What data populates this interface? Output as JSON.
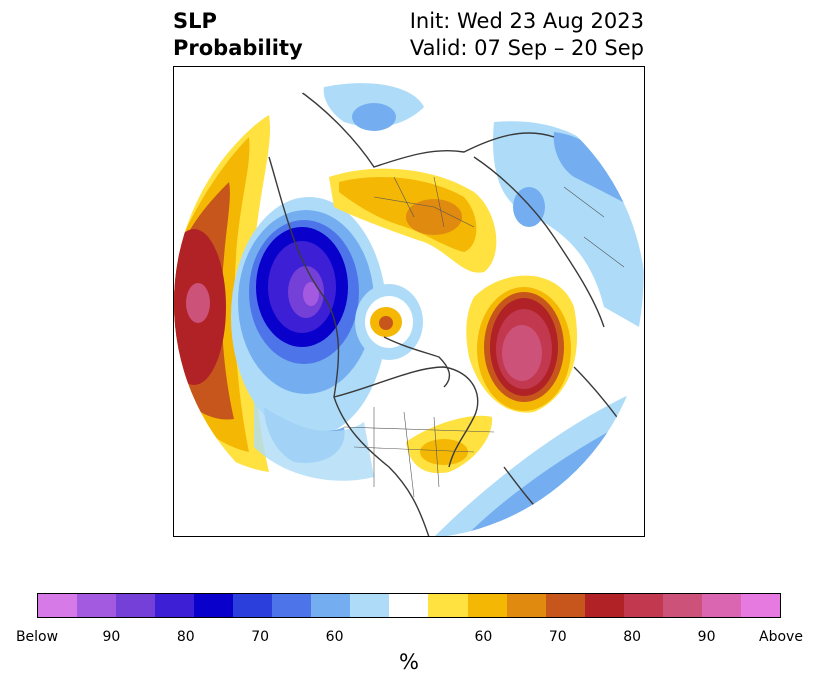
{
  "header": {
    "variable": "SLP",
    "metric": "Probability",
    "init": "Init: Wed 23 Aug 2023",
    "valid": "Valid: 07 Sep – 20 Sep"
  },
  "map": {
    "projection": "north-polar-stereographic",
    "anomalies": [
      {
        "region": "North Pacific (west of North America)",
        "sign": "above",
        "peak_percent": 90
      },
      {
        "region": "Gulf of Alaska / western Canada",
        "sign": "below",
        "peak_percent": 90
      },
      {
        "region": "Arctic Ocean near North Pole",
        "sign": "above",
        "peak_percent": 70
      },
      {
        "region": "North Atlantic / Greenland Sea",
        "sign": "above",
        "peak_percent": 90
      },
      {
        "region": "Siberia / northern Asia",
        "sign": "above",
        "peak_percent": 70
      },
      {
        "region": "Eastern United States",
        "sign": "above",
        "peak_percent": 65
      },
      {
        "region": "Subtropical North Atlantic",
        "sign": "below",
        "peak_percent": 80
      },
      {
        "region": "Eastern Asia",
        "sign": "below",
        "peak_percent": 60
      }
    ]
  },
  "colorbar": {
    "unit": "%",
    "colors": [
      "#d57ae6",
      "#a45ae0",
      "#7540d8",
      "#3d1fd6",
      "#0a00cc",
      "#2a3fdc",
      "#4d74e8",
      "#74aef0",
      "#aedcf8",
      "#ffffff",
      "#ffe140",
      "#f4b804",
      "#e08a10",
      "#c6561c",
      "#b02226",
      "#c2384e",
      "#cc527a",
      "#da65b0",
      "#e77ae0"
    ],
    "ticks": [
      "Below",
      "90",
      "80",
      "70",
      "60",
      "60",
      "70",
      "80",
      "90",
      "Above"
    ],
    "tick_positions": [
      0,
      2,
      4,
      6,
      8,
      12,
      14,
      16,
      18,
      20
    ]
  }
}
